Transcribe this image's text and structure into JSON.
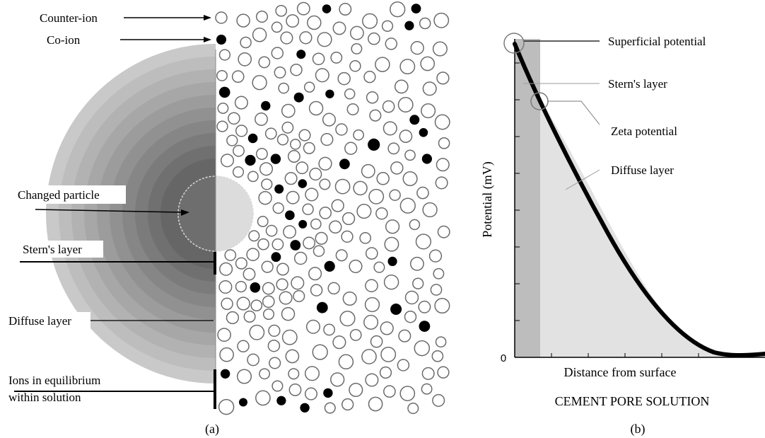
{
  "panel_a": {
    "caption": "(a)",
    "labels": {
      "counter_ion": "Counter-ion",
      "co_ion": "Co-ion",
      "charged_particle": "Changed particle",
      "stern_layer": "Stern's layer",
      "diffuse_layer": "Diffuse layer",
      "ions_equilibrium_line1": "Ions in equilibrium",
      "ions_equilibrium_line2": "within solution"
    },
    "colors": {
      "ion_stroke": "#6b6b6b",
      "co_ion_fill": "#000000",
      "particle_left": "#6e6e6e",
      "particle_right": "#dcdcdc",
      "halo_outer": "#c8c8c8",
      "halo_inner": "#5e5e5e"
    }
  },
  "panel_b": {
    "caption": "(b)",
    "labels": {
      "superficial_potential": "Superficial potential",
      "stern_layer": "Stern's layer",
      "zeta_potential": "Zeta potential",
      "diffuse_layer": "Diffuse layer"
    },
    "axes": {
      "ylabel": "Potential (mV)",
      "xlabel": "Distance from surface",
      "origin_label": "0",
      "subtitle": "CEMENT PORE SOLUTION"
    },
    "colors": {
      "stern_region": "#bdbdbd",
      "diffuse_region": "#e2e2e2",
      "curve": "#000000"
    }
  }
}
